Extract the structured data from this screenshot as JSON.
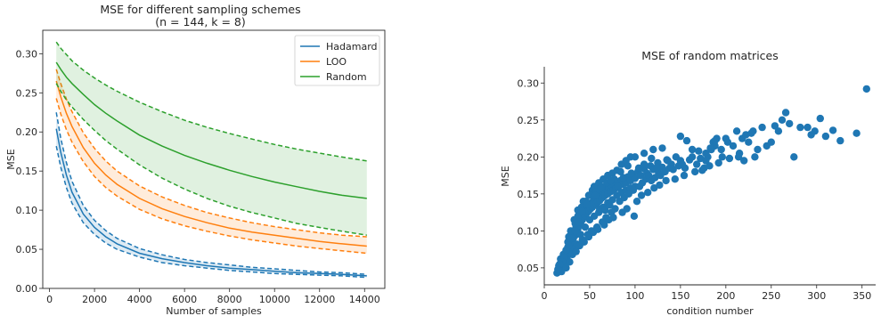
{
  "chart_data": [
    {
      "type": "line",
      "title": "MSE for different sampling schemes",
      "subtitle": "(n = 144, k = 8)",
      "xlabel": "Number of samples",
      "ylabel": "MSE",
      "xlim": [
        -300,
        14900
      ],
      "ylim": [
        0.0,
        0.33
      ],
      "xticks": [
        0,
        2000,
        4000,
        6000,
        8000,
        10000,
        12000,
        14000
      ],
      "yticks": [
        0.0,
        0.05,
        0.1,
        0.15,
        0.2,
        0.25,
        0.3
      ],
      "ytick_labels": [
        "0.00",
        "0.05",
        "0.10",
        "0.15",
        "0.20",
        "0.25",
        "0.30"
      ],
      "grid": false,
      "legend_position": "top-right",
      "x": [
        300,
        500,
        750,
        1000,
        1500,
        2000,
        2500,
        3000,
        4000,
        5000,
        6000,
        7000,
        8000,
        9000,
        10000,
        11000,
        12000,
        13000,
        14100
      ],
      "series": [
        {
          "name": "Hadamard",
          "color": "#1f77b4",
          "mean": [
            0.204,
            0.174,
            0.145,
            0.123,
            0.095,
            0.078,
            0.066,
            0.057,
            0.045,
            0.038,
            0.033,
            0.029,
            0.026,
            0.024,
            0.022,
            0.02,
            0.019,
            0.018,
            0.016
          ],
          "upper": [
            0.225,
            0.192,
            0.161,
            0.137,
            0.106,
            0.087,
            0.074,
            0.064,
            0.051,
            0.043,
            0.037,
            0.033,
            0.03,
            0.027,
            0.025,
            0.023,
            0.021,
            0.02,
            0.018
          ],
          "lower": [
            0.182,
            0.155,
            0.129,
            0.109,
            0.084,
            0.069,
            0.058,
            0.05,
            0.04,
            0.033,
            0.029,
            0.026,
            0.023,
            0.021,
            0.019,
            0.018,
            0.017,
            0.016,
            0.014
          ]
        },
        {
          "name": "LOO",
          "color": "#ff7f0e",
          "mean": [
            0.265,
            0.245,
            0.224,
            0.207,
            0.18,
            0.16,
            0.145,
            0.133,
            0.115,
            0.102,
            0.092,
            0.084,
            0.077,
            0.072,
            0.068,
            0.064,
            0.06,
            0.057,
            0.054
          ],
          "upper": [
            0.28,
            0.262,
            0.242,
            0.226,
            0.199,
            0.179,
            0.163,
            0.15,
            0.131,
            0.117,
            0.106,
            0.097,
            0.09,
            0.084,
            0.079,
            0.075,
            0.071,
            0.068,
            0.066
          ],
          "lower": [
            0.243,
            0.223,
            0.203,
            0.187,
            0.162,
            0.143,
            0.129,
            0.118,
            0.101,
            0.089,
            0.08,
            0.073,
            0.067,
            0.062,
            0.058,
            0.054,
            0.051,
            0.048,
            0.045
          ]
        },
        {
          "name": "Random",
          "color": "#2ca02c",
          "mean": [
            0.289,
            0.28,
            0.27,
            0.262,
            0.248,
            0.235,
            0.224,
            0.214,
            0.196,
            0.182,
            0.17,
            0.16,
            0.151,
            0.143,
            0.136,
            0.13,
            0.124,
            0.119,
            0.115
          ],
          "upper": [
            0.315,
            0.307,
            0.299,
            0.291,
            0.279,
            0.269,
            0.26,
            0.252,
            0.238,
            0.226,
            0.215,
            0.206,
            0.198,
            0.191,
            0.184,
            0.178,
            0.173,
            0.168,
            0.163
          ],
          "lower": [
            0.262,
            0.252,
            0.241,
            0.232,
            0.216,
            0.202,
            0.189,
            0.178,
            0.158,
            0.141,
            0.127,
            0.115,
            0.105,
            0.097,
            0.09,
            0.083,
            0.078,
            0.073,
            0.068
          ]
        }
      ]
    },
    {
      "type": "scatter",
      "title": "MSE of random matrices",
      "xlabel": "condition number",
      "ylabel": "MSE",
      "xlim": [
        0,
        365
      ],
      "ylim": [
        0.027,
        0.322
      ],
      "xticks": [
        0,
        50,
        100,
        150,
        200,
        250,
        300,
        350
      ],
      "yticks": [
        0.05,
        0.1,
        0.15,
        0.2,
        0.25,
        0.3
      ],
      "ytick_labels": [
        "0.05",
        "0.10",
        "0.15",
        "0.20",
        "0.25",
        "0.30"
      ],
      "grid": false,
      "color": "#1f77b4",
      "points": [
        [
          14,
          0.043
        ],
        [
          16,
          0.046
        ],
        [
          17,
          0.05
        ],
        [
          18,
          0.048
        ],
        [
          19,
          0.055
        ],
        [
          20,
          0.052
        ],
        [
          21,
          0.058
        ],
        [
          22,
          0.062
        ],
        [
          22,
          0.055
        ],
        [
          23,
          0.066
        ],
        [
          24,
          0.06
        ],
        [
          25,
          0.072
        ],
        [
          25,
          0.064
        ],
        [
          26,
          0.078
        ],
        [
          27,
          0.07
        ],
        [
          28,
          0.082
        ],
        [
          28,
          0.075
        ],
        [
          29,
          0.088
        ],
        [
          30,
          0.08
        ],
        [
          30,
          0.092
        ],
        [
          31,
          0.085
        ],
        [
          32,
          0.096
        ],
        [
          32,
          0.09
        ],
        [
          33,
          0.1
        ],
        [
          34,
          0.094
        ],
        [
          35,
          0.105
        ],
        [
          35,
          0.098
        ],
        [
          36,
          0.11
        ],
        [
          37,
          0.103
        ],
        [
          38,
          0.114
        ],
        [
          38,
          0.107
        ],
        [
          39,
          0.118
        ],
        [
          40,
          0.111
        ],
        [
          41,
          0.122
        ],
        [
          42,
          0.115
        ],
        [
          43,
          0.125
        ],
        [
          44,
          0.119
        ],
        [
          45,
          0.128
        ],
        [
          45,
          0.121
        ],
        [
          46,
          0.13
        ],
        [
          47,
          0.124
        ],
        [
          48,
          0.133
        ],
        [
          49,
          0.127
        ],
        [
          50,
          0.136
        ],
        [
          51,
          0.13
        ],
        [
          52,
          0.138
        ],
        [
          53,
          0.132
        ],
        [
          54,
          0.14
        ],
        [
          55,
          0.135
        ],
        [
          56,
          0.143
        ],
        [
          57,
          0.137
        ],
        [
          58,
          0.145
        ],
        [
          59,
          0.139
        ],
        [
          60,
          0.148
        ],
        [
          61,
          0.141
        ],
        [
          62,
          0.15
        ],
        [
          63,
          0.144
        ],
        [
          64,
          0.152
        ],
        [
          65,
          0.146
        ],
        [
          66,
          0.155
        ],
        [
          67,
          0.148
        ],
        [
          68,
          0.157
        ],
        [
          70,
          0.15
        ],
        [
          71,
          0.159
        ],
        [
          73,
          0.153
        ],
        [
          74,
          0.162
        ],
        [
          76,
          0.155
        ],
        [
          77,
          0.164
        ],
        [
          79,
          0.158
        ],
        [
          80,
          0.166
        ],
        [
          82,
          0.16
        ],
        [
          84,
          0.168
        ],
        [
          86,
          0.163
        ],
        [
          88,
          0.171
        ],
        [
          90,
          0.165
        ],
        [
          92,
          0.173
        ],
        [
          95,
          0.168
        ],
        [
          97,
          0.176
        ],
        [
          100,
          0.171
        ],
        [
          103,
          0.18
        ],
        [
          106,
          0.175
        ],
        [
          110,
          0.184
        ],
        [
          113,
          0.178
        ],
        [
          117,
          0.188
        ],
        [
          120,
          0.183
        ],
        [
          125,
          0.192
        ],
        [
          130,
          0.186
        ],
        [
          135,
          0.196
        ],
        [
          140,
          0.19
        ],
        [
          145,
          0.2
        ],
        [
          150,
          0.195
        ],
        [
          40,
          0.095
        ],
        [
          45,
          0.105
        ],
        [
          50,
          0.115
        ],
        [
          55,
          0.12
        ],
        [
          60,
          0.125
        ],
        [
          65,
          0.132
        ],
        [
          70,
          0.138
        ],
        [
          75,
          0.142
        ],
        [
          80,
          0.148
        ],
        [
          85,
          0.152
        ],
        [
          90,
          0.155
        ],
        [
          95,
          0.158
        ],
        [
          100,
          0.16
        ],
        [
          55,
          0.16
        ],
        [
          60,
          0.165
        ],
        [
          65,
          0.17
        ],
        [
          70,
          0.175
        ],
        [
          75,
          0.178
        ],
        [
          80,
          0.182
        ],
        [
          85,
          0.19
        ],
        [
          90,
          0.195
        ],
        [
          95,
          0.2
        ],
        [
          110,
          0.205
        ],
        [
          120,
          0.21
        ],
        [
          130,
          0.212
        ],
        [
          32,
          0.075
        ],
        [
          36,
          0.082
        ],
        [
          42,
          0.088
        ],
        [
          48,
          0.095
        ],
        [
          52,
          0.1
        ],
        [
          58,
          0.105
        ],
        [
          64,
          0.112
        ],
        [
          68,
          0.118
        ],
        [
          74,
          0.125
        ],
        [
          78,
          0.13
        ],
        [
          18,
          0.062
        ],
        [
          23,
          0.07
        ],
        [
          27,
          0.092
        ],
        [
          33,
          0.115
        ],
        [
          37,
          0.128
        ],
        [
          43,
          0.14
        ],
        [
          49,
          0.148
        ],
        [
          53,
          0.155
        ],
        [
          61,
          0.13
        ],
        [
          67,
          0.128
        ],
        [
          72,
          0.135
        ],
        [
          83,
          0.14
        ],
        [
          88,
          0.145
        ],
        [
          93,
          0.15
        ],
        [
          98,
          0.155
        ],
        [
          105,
          0.16
        ],
        [
          108,
          0.165
        ],
        [
          112,
          0.17
        ],
        [
          115,
          0.175
        ],
        [
          118,
          0.168
        ],
        [
          122,
          0.172
        ],
        [
          126,
          0.178
        ],
        [
          128,
          0.175
        ],
        [
          133,
          0.18
        ],
        [
          138,
          0.185
        ],
        [
          142,
          0.183
        ],
        [
          148,
          0.188
        ],
        [
          152,
          0.19
        ],
        [
          155,
          0.185
        ],
        [
          160,
          0.196
        ],
        [
          163,
          0.2
        ],
        [
          168,
          0.19
        ],
        [
          172,
          0.198
        ],
        [
          176,
          0.185
        ],
        [
          178,
          0.205
        ],
        [
          180,
          0.2
        ],
        [
          184,
          0.21
        ],
        [
          186,
          0.22
        ],
        [
          188,
          0.215
        ],
        [
          190,
          0.225
        ],
        [
          195,
          0.21
        ],
        [
          200,
          0.225
        ],
        [
          202,
          0.22
        ],
        [
          208,
          0.215
        ],
        [
          212,
          0.235
        ],
        [
          215,
          0.205
        ],
        [
          218,
          0.225
        ],
        [
          220,
          0.195
        ],
        [
          222,
          0.23
        ],
        [
          225,
          0.22
        ],
        [
          228,
          0.232
        ],
        [
          230,
          0.235
        ],
        [
          232,
          0.2
        ],
        [
          235,
          0.21
        ],
        [
          240,
          0.24
        ],
        [
          245,
          0.215
        ],
        [
          250,
          0.22
        ],
        [
          254,
          0.242
        ],
        [
          258,
          0.235
        ],
        [
          262,
          0.25
        ],
        [
          266,
          0.26
        ],
        [
          270,
          0.245
        ],
        [
          275,
          0.2
        ],
        [
          282,
          0.24
        ],
        [
          290,
          0.24
        ],
        [
          294,
          0.23
        ],
        [
          298,
          0.235
        ],
        [
          304,
          0.252
        ],
        [
          310,
          0.228
        ],
        [
          318,
          0.236
        ],
        [
          326,
          0.222
        ],
        [
          344,
          0.232
        ],
        [
          355,
          0.292
        ],
        [
          150,
          0.228
        ],
        [
          157,
          0.222
        ],
        [
          163,
          0.21
        ],
        [
          170,
          0.208
        ],
        [
          178,
          0.195
        ],
        [
          183,
          0.212
        ],
        [
          188,
          0.222
        ],
        [
          196,
          0.2
        ],
        [
          99,
          0.12
        ],
        [
          124,
          0.186
        ],
        [
          136,
          0.195
        ],
        [
          118,
          0.198
        ],
        [
          110,
          0.19
        ],
        [
          104,
          0.185
        ],
        [
          96,
          0.178
        ],
        [
          87,
          0.172
        ],
        [
          81,
          0.16
        ],
        [
          77,
          0.17
        ],
        [
          69,
          0.165
        ],
        [
          63,
          0.16
        ],
        [
          57,
          0.153
        ],
        [
          51,
          0.148
        ],
        [
          46,
          0.14
        ],
        [
          41,
          0.132
        ],
        [
          37,
          0.12
        ],
        [
          34,
          0.11
        ],
        [
          29,
          0.1
        ],
        [
          26,
          0.085
        ],
        [
          21,
          0.068
        ],
        [
          16,
          0.053
        ],
        [
          19,
          0.045
        ],
        [
          24,
          0.05
        ],
        [
          28,
          0.058
        ],
        [
          31,
          0.068
        ],
        [
          35,
          0.072
        ],
        [
          39,
          0.08
        ],
        [
          44,
          0.085
        ],
        [
          49,
          0.092
        ],
        [
          54,
          0.098
        ],
        [
          59,
          0.102
        ],
        [
          66,
          0.108
        ],
        [
          71,
          0.115
        ],
        [
          76,
          0.118
        ],
        [
          86,
          0.125
        ],
        [
          91,
          0.13
        ],
        [
          102,
          0.14
        ],
        [
          107,
          0.148
        ],
        [
          114,
          0.152
        ],
        [
          121,
          0.158
        ],
        [
          127,
          0.162
        ],
        [
          134,
          0.168
        ],
        [
          144,
          0.17
        ],
        [
          154,
          0.175
        ],
        [
          166,
          0.18
        ],
        [
          174,
          0.182
        ],
        [
          182,
          0.188
        ],
        [
          192,
          0.192
        ],
        [
          204,
          0.198
        ],
        [
          214,
          0.2
        ],
        [
          100,
          0.2
        ],
        [
          92,
          0.188
        ],
        [
          84,
          0.18
        ],
        [
          73,
          0.168
        ],
        [
          62,
          0.158
        ],
        [
          56,
          0.148
        ],
        [
          47,
          0.136
        ],
        [
          42,
          0.126
        ],
        [
          38,
          0.112
        ],
        [
          34,
          0.1
        ],
        [
          30,
          0.09
        ],
        [
          27,
          0.08
        ],
        [
          24,
          0.074
        ],
        [
          22,
          0.064
        ],
        [
          20,
          0.058
        ],
        [
          17,
          0.055
        ],
        [
          15,
          0.048
        ]
      ]
    }
  ]
}
